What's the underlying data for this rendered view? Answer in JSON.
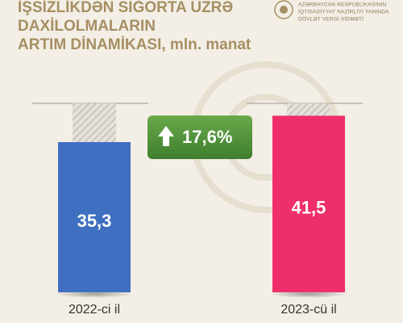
{
  "chart_data": {
    "type": "bar",
    "title": [
      "İŞSİZLİKDƏN SIĞORTA ÜZRƏ",
      "DAXİLOLMALARIN",
      "ARTIM DİNAMİKASI, mln. manat"
    ],
    "organization": [
      "AZƏRBAYCAN RESPUBLİKASININ",
      "İQTİSADİYYAT NAZİRLİYİ YANINDA",
      "DÖVLƏT VERGİ XİDMƏTİ"
    ],
    "categories": [
      "2022-ci il",
      "2023-cü il"
    ],
    "values": [
      35.3,
      41.5
    ],
    "value_labels": [
      "35,3",
      "41,5"
    ],
    "colors": [
      "#3f6fc0",
      "#ef2f6b"
    ],
    "annotation": "17,6%"
  }
}
